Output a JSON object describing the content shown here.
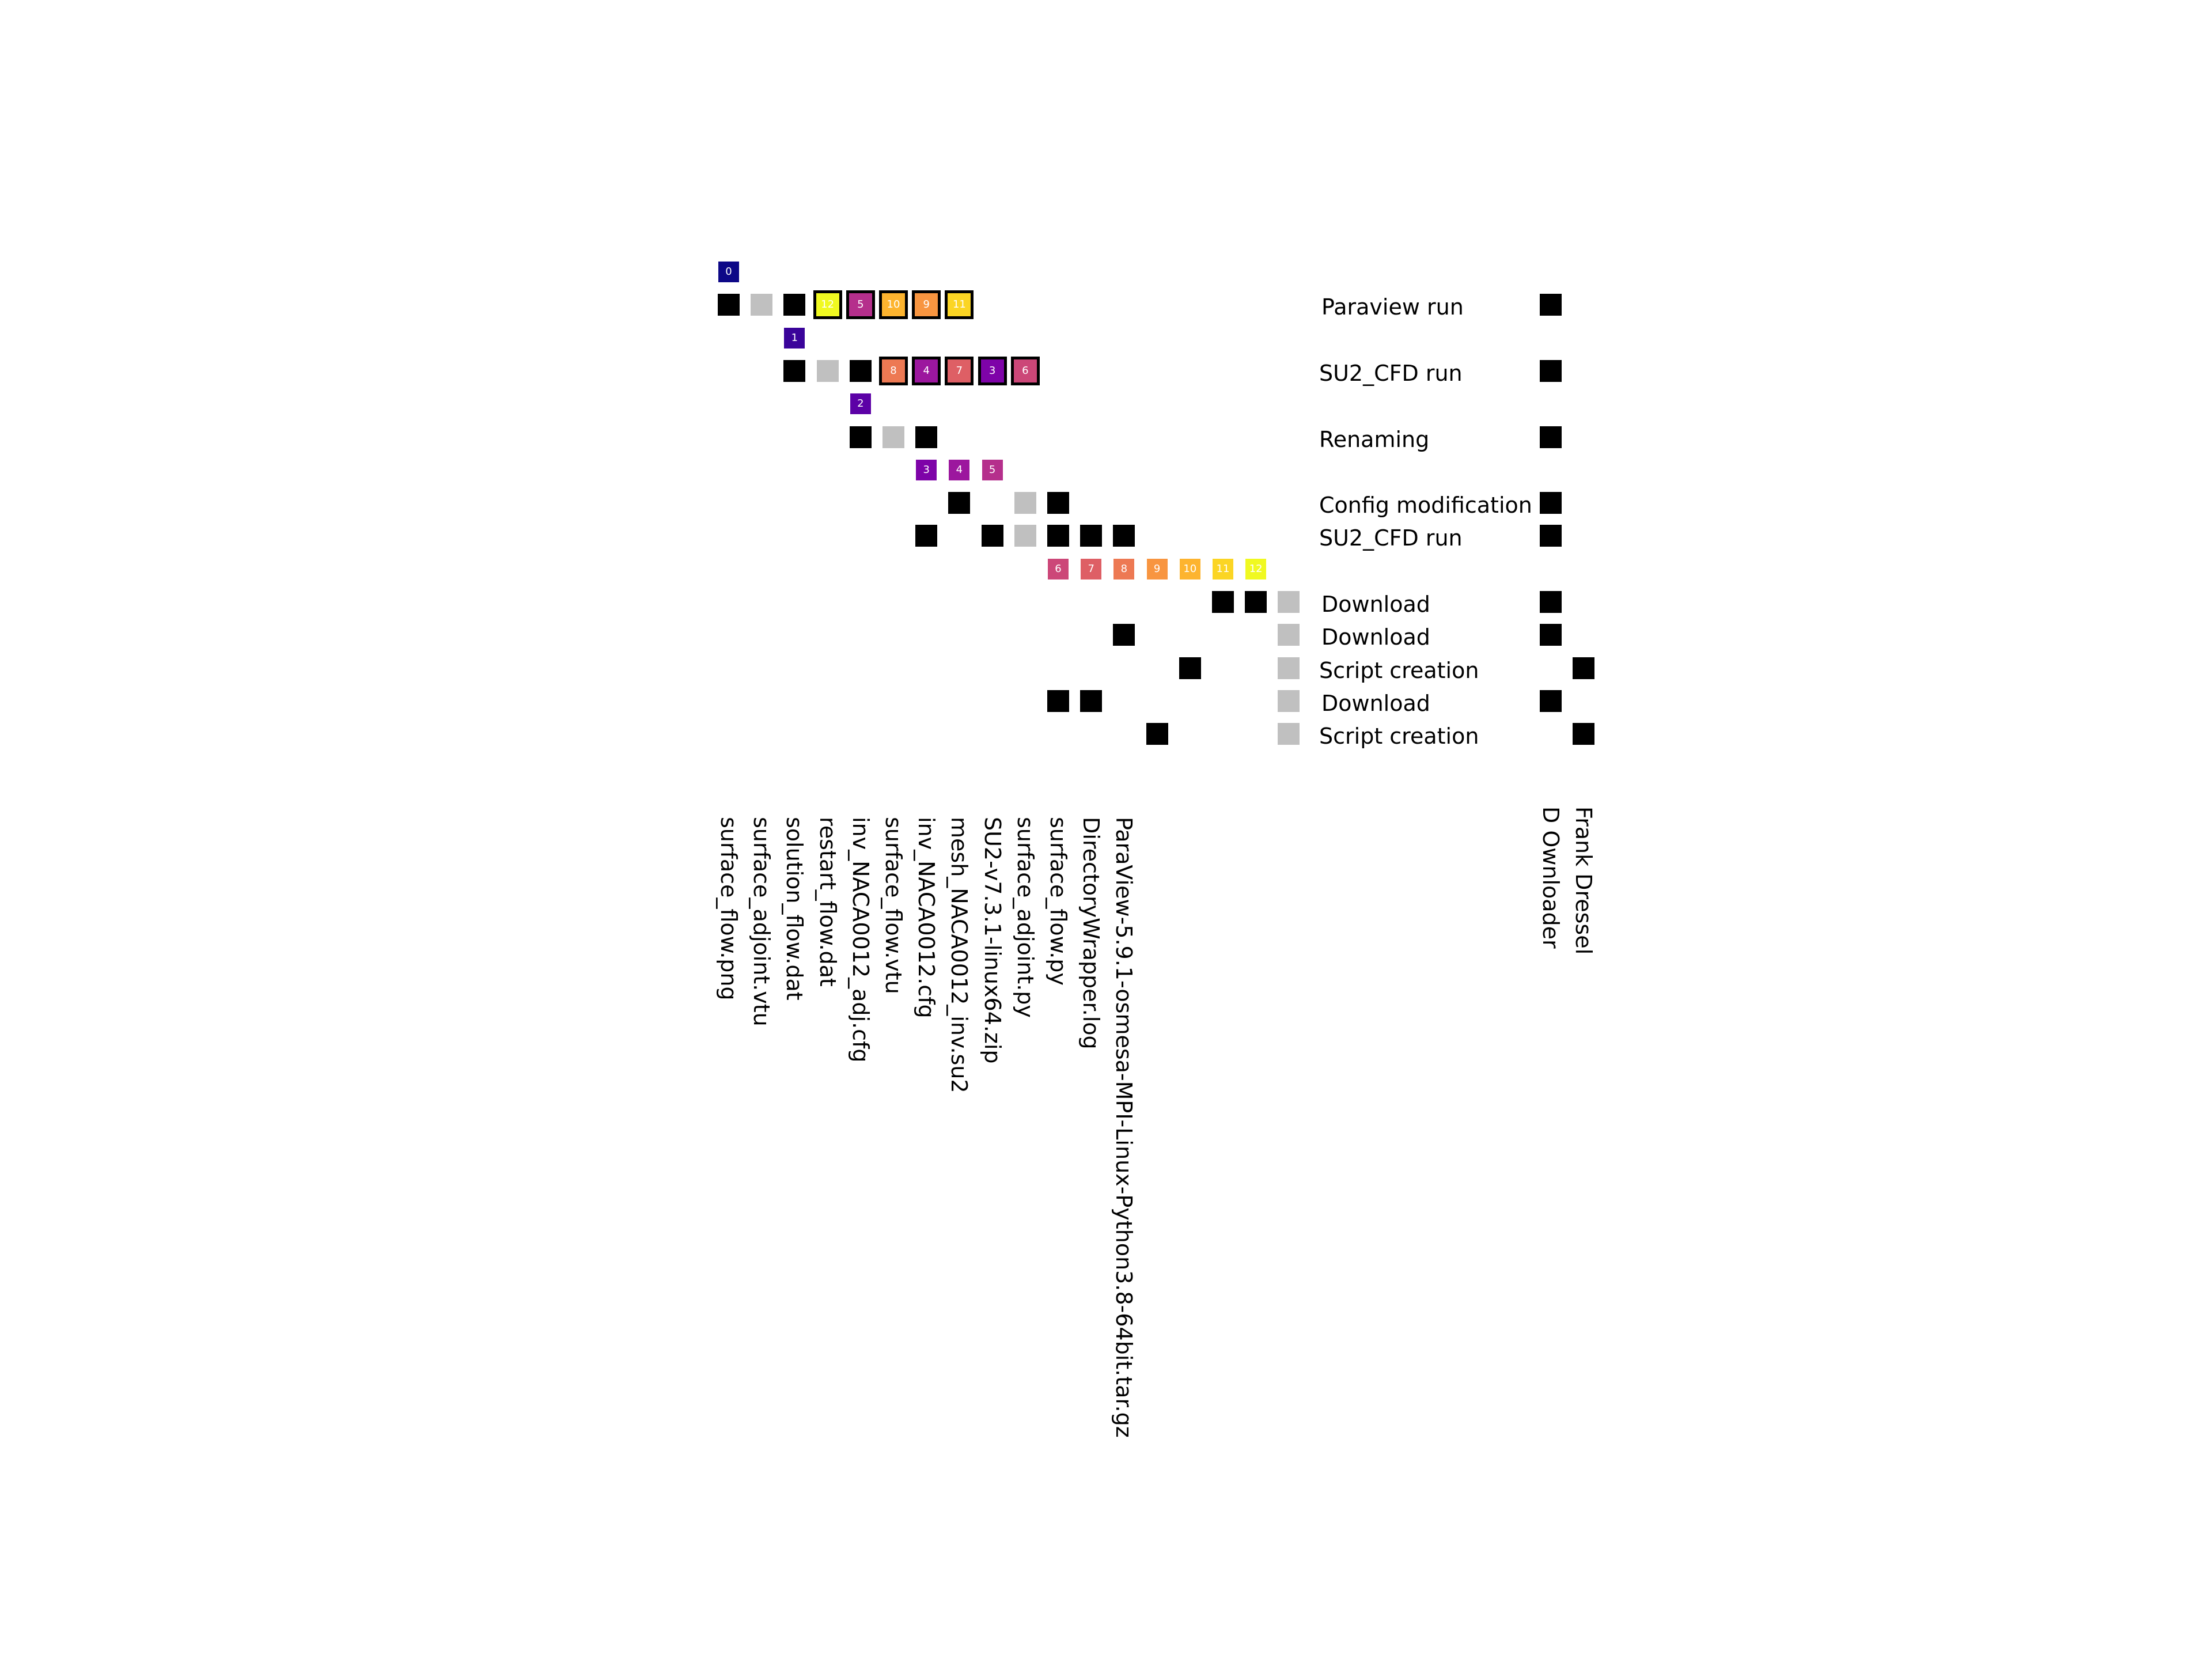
{
  "palette": {
    "entity": "#000000",
    "activity": "#c0c0c0",
    "version": [
      "#0d0887",
      "#3a049a",
      "#5c01a6",
      "#7e03a8",
      "#9c179e",
      "#b52f8c",
      "#cc4778",
      "#de5f65",
      "#ed7953",
      "#f89540",
      "#fdb42f",
      "#fbd524",
      "#f0f921"
    ]
  },
  "row_labels": [
    {
      "text": "Paraview run",
      "row": 1,
      "indent": 1
    },
    {
      "text": "SU2_CFD run",
      "row": 3,
      "indent": 0
    },
    {
      "text": "Renaming",
      "row": 5,
      "indent": 0
    },
    {
      "text": "Config modification",
      "row": 7,
      "indent": 0
    },
    {
      "text": "SU2_CFD run",
      "row": 8,
      "indent": 0
    },
    {
      "text": "Download",
      "row": 10,
      "indent": 1
    },
    {
      "text": "Download",
      "row": 11,
      "indent": 1
    },
    {
      "text": "Script creation",
      "row": 12,
      "indent": 0
    },
    {
      "text": "Download",
      "row": 13,
      "indent": 1
    },
    {
      "text": "Script creation",
      "row": 14,
      "indent": 0
    }
  ],
  "column_labels": [
    "surface_flow.png",
    "surface_adjoint.vtu",
    "solution_flow.dat",
    "restart_flow.dat",
    "inv_NACA0012_adj.cfg",
    "surface_flow.vtu",
    "inv_NACA0012.cfg",
    "mesh_NACA0012_inv.su2",
    "SU2-v7.3.1-linux64.zip",
    "surface_adjoint.py",
    "surface_flow.py",
    "DirectoryWrapper.log",
    "ParaView-5.9.1-osmesa-MPI-Linux-Python3.8-64bit.tar.gz"
  ],
  "agent_labels": [
    "D Ownloader",
    "Frank Dressel"
  ],
  "versions": [
    {
      "label": "0",
      "col": 0,
      "row": 0,
      "v": 0
    },
    {
      "label": "12",
      "col": 3,
      "row": 1,
      "v": 12,
      "boxed": true
    },
    {
      "label": "5",
      "col": 4,
      "row": 1,
      "v": 5,
      "boxed": true
    },
    {
      "label": "10",
      "col": 5,
      "row": 1,
      "v": 10,
      "boxed": true
    },
    {
      "label": "9",
      "col": 6,
      "row": 1,
      "v": 9,
      "boxed": true
    },
    {
      "label": "11",
      "col": 7,
      "row": 1,
      "v": 11,
      "boxed": true
    },
    {
      "label": "1",
      "col": 2,
      "row": 2,
      "v": 1
    },
    {
      "label": "8",
      "col": 5,
      "row": 3,
      "v": 8,
      "boxed": true
    },
    {
      "label": "4",
      "col": 6,
      "row": 3,
      "v": 4,
      "boxed": true
    },
    {
      "label": "7",
      "col": 7,
      "row": 3,
      "v": 7,
      "boxed": true
    },
    {
      "label": "3",
      "col": 8,
      "row": 3,
      "v": 3,
      "boxed": true
    },
    {
      "label": "6",
      "col": 9,
      "row": 3,
      "v": 6,
      "boxed": true
    },
    {
      "label": "2",
      "col": 4,
      "row": 4,
      "v": 2
    },
    {
      "label": "3",
      "col": 6,
      "row": 6,
      "v": 3
    },
    {
      "label": "4",
      "col": 7,
      "row": 6,
      "v": 4
    },
    {
      "label": "5",
      "col": 8,
      "row": 6,
      "v": 5
    },
    {
      "label": "6",
      "col": 10,
      "row": 9,
      "v": 6
    },
    {
      "label": "7",
      "col": 11,
      "row": 9,
      "v": 7
    },
    {
      "label": "8",
      "col": 12,
      "row": 9,
      "v": 8
    },
    {
      "label": "9",
      "col": 13,
      "row": 9,
      "v": 9
    },
    {
      "label": "10",
      "col": 14,
      "row": 9,
      "v": 10
    },
    {
      "label": "11",
      "col": 15,
      "row": 9,
      "v": 11
    },
    {
      "label": "12",
      "col": 16,
      "row": 9,
      "v": 12
    }
  ],
  "entities": [
    {
      "col": 0,
      "row": 1
    },
    {
      "col": 2,
      "row": 1
    },
    {
      "col": 2,
      "row": 3
    },
    {
      "col": 4,
      "row": 3
    },
    {
      "col": 4,
      "row": 5
    },
    {
      "col": 6,
      "row": 5
    },
    {
      "col": 7,
      "row": 7
    },
    {
      "col": 10,
      "row": 7
    },
    {
      "col": 6,
      "row": 8
    },
    {
      "col": 8,
      "row": 8
    },
    {
      "col": 10,
      "row": 8
    },
    {
      "col": 11,
      "row": 8
    },
    {
      "col": 12,
      "row": 8
    },
    {
      "col": 15,
      "row": 10
    },
    {
      "col": 16,
      "row": 10
    },
    {
      "col": 12,
      "row": 11
    },
    {
      "col": 14,
      "row": 12
    },
    {
      "col": 10,
      "row": 13
    },
    {
      "col": 11,
      "row": 13
    },
    {
      "col": 13,
      "row": 14
    }
  ],
  "activities": [
    {
      "col": 1,
      "row": 1
    },
    {
      "col": 3,
      "row": 3
    },
    {
      "col": 5,
      "row": 5
    },
    {
      "col": 9,
      "row": 7
    },
    {
      "col": 9,
      "row": 8
    },
    {
      "col": 17,
      "row": 10
    },
    {
      "col": 17,
      "row": 11
    },
    {
      "col": 17,
      "row": 12
    },
    {
      "col": 17,
      "row": 13
    },
    {
      "col": 17,
      "row": 14
    }
  ],
  "agent_cells": [
    {
      "agent": 0,
      "row": 1
    },
    {
      "agent": 0,
      "row": 3
    },
    {
      "agent": 0,
      "row": 5
    },
    {
      "agent": 0,
      "row": 7
    },
    {
      "agent": 0,
      "row": 8
    },
    {
      "agent": 0,
      "row": 10
    },
    {
      "agent": 0,
      "row": 11
    },
    {
      "agent": 1,
      "row": 12
    },
    {
      "agent": 0,
      "row": 13
    },
    {
      "agent": 1,
      "row": 14
    }
  ]
}
